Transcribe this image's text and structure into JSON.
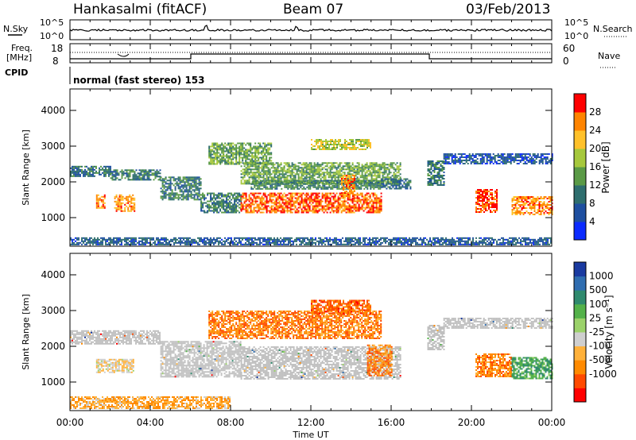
{
  "header": {
    "radar": "Hankasalmi (fitACF)",
    "beam": "Beam 07",
    "date": "03/Feb/2013"
  },
  "top_panel": {
    "nsky_label": "N.Sky",
    "nsearch_label": "N.Search",
    "noise_ticks": [
      "10^5",
      "10^0"
    ],
    "freq_label_1": "Freq.",
    "freq_label_2": "[MHz]",
    "freq_ticks": [
      "18",
      "8"
    ],
    "nave_label": "Nave",
    "nave_ticks": [
      "60",
      "0"
    ],
    "cpid_label": "CPID",
    "cpid_text": "normal (fast stereo) 153"
  },
  "time_axis": {
    "label": "Time UT",
    "ticks": [
      "00:00",
      "04:00",
      "08:00",
      "12:00",
      "16:00",
      "20:00",
      "00:00"
    ]
  },
  "colors": {
    "ground_scatter": "#c0c0c0",
    "power_scale": [
      "#0b2bff",
      "#1e4fa0",
      "#2e6e6e",
      "#5a9a46",
      "#a6c83c",
      "#ffc12a",
      "#ff8400",
      "#ff0000"
    ],
    "velocity_scale": [
      "#1a3aa0",
      "#2f6db0",
      "#2f8a6e",
      "#54b24a",
      "#9bd26a",
      "#cfcfcf",
      "#ffb13a",
      "#ff8a00",
      "#ff4a00",
      "#ff0000"
    ]
  },
  "chart_data": [
    {
      "type": "heatmap",
      "parameter": "power",
      "ylabel": "Slant Range [km]",
      "y_ticks": [
        1000,
        2000,
        3000,
        4000
      ],
      "ylim": [
        200,
        4600
      ],
      "xlim": [
        "00:00",
        "24:00"
      ],
      "colorbar": {
        "label": "Power [dB]",
        "ticks": [
          4,
          8,
          12,
          16,
          20,
          24,
          28
        ]
      },
      "regions": [
        {
          "t0": 0.0,
          "t1": 2.0,
          "r0": 2150,
          "r1": 2450,
          "level": 0.25
        },
        {
          "t0": 2.0,
          "t1": 4.5,
          "r0": 2050,
          "r1": 2350,
          "level": 0.3
        },
        {
          "t0": 4.5,
          "t1": 6.5,
          "r0": 1500,
          "r1": 2150,
          "level": 0.3
        },
        {
          "t0": 6.5,
          "t1": 8.5,
          "r0": 1150,
          "r1": 1700,
          "level": 0.3
        },
        {
          "t0": 1.3,
          "t1": 1.7,
          "r0": 1250,
          "r1": 1650,
          "level": 0.85
        },
        {
          "t0": 2.2,
          "t1": 2.6,
          "r0": 1200,
          "r1": 1650,
          "level": 0.8
        },
        {
          "t0": 2.7,
          "t1": 3.2,
          "r0": 1200,
          "r1": 1650,
          "level": 0.8
        },
        {
          "t0": 6.9,
          "t1": 10.0,
          "r0": 2500,
          "r1": 3100,
          "level": 0.45
        },
        {
          "t0": 8.5,
          "t1": 16.5,
          "r0": 1950,
          "r1": 2550,
          "level": 0.45
        },
        {
          "t0": 9.0,
          "t1": 15.5,
          "r0": 1800,
          "r1": 2050,
          "level": 0.35
        },
        {
          "t0": 8.5,
          "t1": 15.5,
          "r0": 1150,
          "r1": 1700,
          "level": 0.9
        },
        {
          "t0": 13.5,
          "t1": 14.2,
          "r0": 1550,
          "r1": 2200,
          "level": 0.85
        },
        {
          "t0": 12.0,
          "t1": 15.0,
          "r0": 2900,
          "r1": 3200,
          "level": 0.6
        },
        {
          "t0": 15.5,
          "t1": 17.0,
          "r0": 1800,
          "r1": 2100,
          "level": 0.25
        },
        {
          "t0": 17.8,
          "t1": 18.6,
          "r0": 1900,
          "r1": 2600,
          "level": 0.3
        },
        {
          "t0": 18.6,
          "t1": 24.0,
          "r0": 2500,
          "r1": 2800,
          "level": 0.15
        },
        {
          "t0": 20.2,
          "t1": 21.3,
          "r0": 1150,
          "r1": 1800,
          "level": 0.95
        },
        {
          "t0": 22.0,
          "t1": 24.0,
          "r0": 1100,
          "r1": 1600,
          "level": 0.85
        },
        {
          "t0": 0.0,
          "t1": 24.0,
          "r0": 250,
          "r1": 450,
          "level": 0.2
        }
      ]
    },
    {
      "type": "heatmap",
      "parameter": "velocity",
      "ylabel": "Slant Range [km]",
      "y_ticks": [
        1000,
        2000,
        3000,
        4000
      ],
      "ylim": [
        200,
        4600
      ],
      "xlim": [
        "00:00",
        "24:00"
      ],
      "colorbar": {
        "label": "Velocity [m s⁻¹]",
        "ticks": [
          "1000",
          "500",
          "100",
          "25",
          "-25",
          "-100",
          "-500",
          "-1000"
        ]
      },
      "regions": [
        {
          "t0": 0.0,
          "t1": 4.5,
          "r0": 2050,
          "r1": 2450,
          "level": "ground"
        },
        {
          "t0": 4.5,
          "t1": 8.5,
          "r0": 1150,
          "r1": 2150,
          "level": "ground"
        },
        {
          "t0": 8.5,
          "t1": 16.5,
          "r0": 1100,
          "r1": 2000,
          "level": "ground"
        },
        {
          "t0": 1.3,
          "t1": 3.2,
          "r0": 1250,
          "r1": 1650,
          "level": 0.6
        },
        {
          "t0": 6.9,
          "t1": 15.5,
          "r0": 2200,
          "r1": 3000,
          "level": 0.8
        },
        {
          "t0": 12.0,
          "t1": 15.0,
          "r0": 2900,
          "r1": 3300,
          "level": 0.85
        },
        {
          "t0": 14.8,
          "t1": 16.0,
          "r0": 1200,
          "r1": 2050,
          "level": 0.8
        },
        {
          "t0": 17.8,
          "t1": 18.6,
          "r0": 1900,
          "r1": 2600,
          "level": "ground"
        },
        {
          "t0": 18.6,
          "t1": 24.0,
          "r0": 2500,
          "r1": 2800,
          "level": "ground"
        },
        {
          "t0": 20.2,
          "t1": 22.0,
          "r0": 1150,
          "r1": 1800,
          "level": 0.78
        },
        {
          "t0": 22.0,
          "t1": 24.0,
          "r0": 1100,
          "r1": 1700,
          "level": 0.3
        },
        {
          "t0": 0.0,
          "t1": 8.0,
          "r0": 250,
          "r1": 600,
          "level": 0.7
        }
      ]
    }
  ]
}
